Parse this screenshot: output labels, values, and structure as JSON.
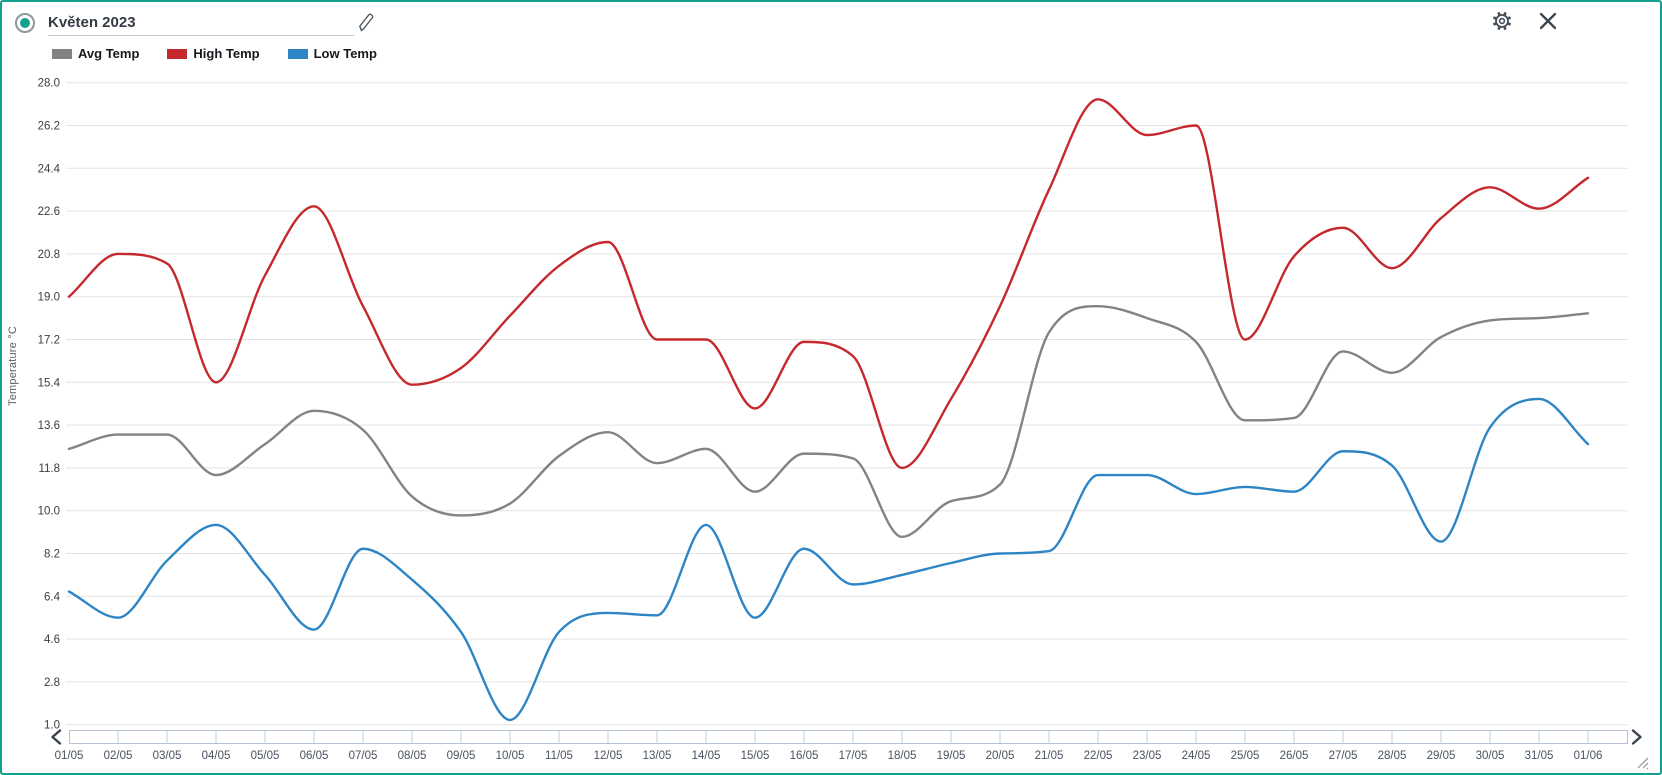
{
  "window": {
    "border_color": "#15a08e",
    "icons": [
      "radio-selected-icon",
      "pencil-icon",
      "gear-icon",
      "close-icon",
      "chevron-left-icon",
      "chevron-right-icon",
      "resize-handle-icon"
    ]
  },
  "header": {
    "title_value": "Květen 2023"
  },
  "legend": [
    {
      "label": "Avg Temp",
      "color": "#838383"
    },
    {
      "label": "High Temp",
      "color": "#c5282d"
    },
    {
      "label": "Low Temp",
      "color": "#2d85c5"
    }
  ],
  "chart_data": {
    "type": "line",
    "title": "",
    "xlabel": "",
    "ylabel": "Temperature °C",
    "grid": true,
    "legend_position": "top-left",
    "ylim": [
      1.0,
      28.0
    ],
    "ytick_labels": [
      "28.0",
      "26.2",
      "24.4",
      "22.6",
      "20.8",
      "19.0",
      "17.2",
      "15.4",
      "13.6",
      "11.8",
      "10.0",
      "8.2",
      "6.4",
      "4.6",
      "2.8",
      "1.0"
    ],
    "categories": [
      "01/05",
      "02/05",
      "03/05",
      "04/05",
      "05/05",
      "06/05",
      "07/05",
      "08/05",
      "09/05",
      "10/05",
      "11/05",
      "12/05",
      "13/05",
      "14/05",
      "15/05",
      "16/05",
      "17/05",
      "18/05",
      "19/05",
      "20/05",
      "21/05",
      "22/05",
      "23/05",
      "24/05",
      "25/05",
      "26/05",
      "27/05",
      "28/05",
      "29/05",
      "30/05",
      "31/05",
      "01/06"
    ],
    "series": [
      {
        "name": "Avg Temp",
        "color": "#838383",
        "values": [
          12.6,
          13.2,
          13.2,
          11.5,
          12.8,
          14.2,
          13.4,
          10.6,
          9.8,
          10.3,
          12.3,
          13.3,
          12.0,
          12.6,
          10.8,
          12.4,
          12.2,
          8.9,
          10.4,
          11.1,
          17.5,
          18.6,
          18.1,
          17.1,
          13.8,
          13.9,
          16.7,
          15.8,
          17.3,
          18.0,
          18.1,
          18.3
        ]
      },
      {
        "name": "High Temp",
        "color": "#c5282d",
        "values": [
          19.0,
          20.8,
          20.4,
          15.4,
          19.9,
          22.8,
          18.6,
          15.3,
          16.0,
          18.2,
          20.3,
          21.3,
          17.2,
          17.2,
          14.3,
          17.1,
          16.5,
          11.8,
          14.7,
          18.6,
          23.5,
          27.3,
          25.8,
          26.2,
          17.2,
          20.7,
          21.9,
          20.2,
          22.3,
          23.6,
          22.7,
          24.0
        ]
      },
      {
        "name": "Low Temp",
        "color": "#2d85c5",
        "values": [
          6.6,
          5.5,
          7.9,
          9.4,
          7.3,
          5.0,
          8.4,
          7.1,
          4.9,
          1.2,
          4.9,
          5.7,
          5.6,
          9.4,
          5.5,
          8.4,
          6.9,
          7.3,
          7.8,
          8.2,
          8.3,
          11.5,
          11.5,
          10.7,
          11.0,
          10.8,
          12.5,
          11.9,
          8.7,
          13.5,
          14.7,
          12.8
        ]
      }
    ]
  }
}
